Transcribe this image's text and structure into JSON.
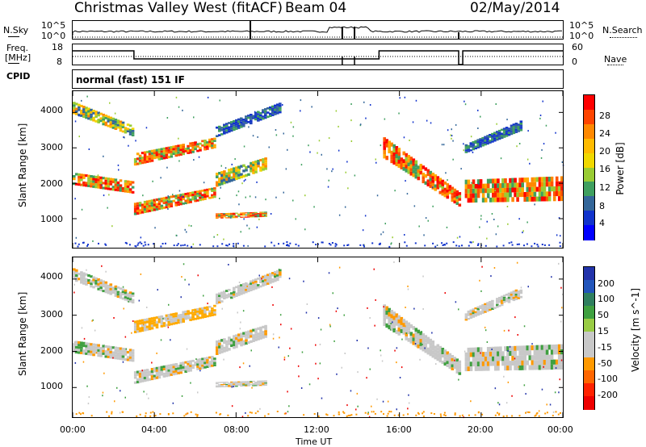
{
  "header": {
    "site": "Christmas Valley West (fitACF)",
    "beam": "Beam 04",
    "date": "02/May/2014"
  },
  "top_panels": {
    "nsky_label": "N.Sky",
    "nsearch_label": "N.Search",
    "freq_label_1": "Freq.",
    "freq_label_2": "[MHz]",
    "nave_label": "Nave",
    "cpid_label": "CPID",
    "nsky_ticks": [
      "10^5",
      "10^0"
    ],
    "nsearch_ticks": [
      "10^5",
      "10^0"
    ],
    "freq_ticks": [
      "18",
      "8"
    ],
    "nave_ticks": [
      "60",
      "0"
    ],
    "cpid_text": "normal (fast) 151 IF"
  },
  "power_colorbar": {
    "label": "Power [dB]",
    "ticks": [
      "28",
      "24",
      "20",
      "16",
      "12",
      "8",
      "4"
    ],
    "colors": [
      "#ff0000",
      "#ff4400",
      "#ff8800",
      "#ffbb00",
      "#f0d800",
      "#99cc33",
      "#3f9f5f",
      "#336699",
      "#1133cc",
      "#0000ff"
    ]
  },
  "velocity_colorbar": {
    "label": "Velocity [m s^-1]",
    "ticks": [
      "200",
      "100",
      "50",
      "15",
      "-15",
      "-50",
      "-100",
      "-200"
    ],
    "colors": [
      "#2233aa",
      "#2255bb",
      "#2f7f5f",
      "#3fa040",
      "#99cc44",
      "#c8c8c8",
      "#c8c8c8",
      "#ff9900",
      "#ff6600",
      "#ff2200",
      "#ee0000"
    ]
  },
  "chart_data": [
    {
      "type": "heatmap",
      "name": "power",
      "ylabel": "Slant Range [km]",
      "y_ticks": [
        1000,
        2000,
        3000,
        4000
      ],
      "ylim": [
        180,
        4600
      ],
      "xlim": [
        0,
        24
      ],
      "bands": [
        {
          "t0": 0.0,
          "t1": 3.0,
          "r0": 1950,
          "r1": 2300,
          "r0e": 1700,
          "r1e": 2050,
          "level": "high"
        },
        {
          "t0": 0.0,
          "t1": 3.0,
          "r0": 3950,
          "r1": 4300,
          "r0e": 3300,
          "r1e": 3600,
          "level": "mid"
        },
        {
          "t0": 3.0,
          "t1": 7.0,
          "r0": 1100,
          "r1": 1450,
          "r0e": 1600,
          "r1e": 1900,
          "level": "high"
        },
        {
          "t0": 3.0,
          "t1": 7.0,
          "r0": 2500,
          "r1": 2850,
          "r0e": 3000,
          "r1e": 3300,
          "level": "high"
        },
        {
          "t0": 7.0,
          "t1": 9.5,
          "r0": 1900,
          "r1": 2300,
          "r0e": 2400,
          "r1e": 2750,
          "level": "mid"
        },
        {
          "t0": 7.0,
          "t1": 10.2,
          "r0": 3300,
          "r1": 3600,
          "r0e": 4000,
          "r1e": 4300,
          "level": "low"
        },
        {
          "t0": 7.0,
          "t1": 9.5,
          "r0": 1000,
          "r1": 1150,
          "r0e": 1050,
          "r1e": 1200,
          "level": "high"
        },
        {
          "t0": 15.2,
          "t1": 19.0,
          "r0": 2700,
          "r1": 3300,
          "r0e": 1300,
          "r1e": 1700,
          "level": "high"
        },
        {
          "t0": 19.2,
          "t1": 24.0,
          "r0": 1450,
          "r1": 2100,
          "r0e": 1500,
          "r1e": 2200,
          "level": "high"
        },
        {
          "t0": 19.2,
          "t1": 22.0,
          "r0": 2850,
          "r1": 3100,
          "r0e": 3500,
          "r1e": 3800,
          "level": "low"
        }
      ]
    },
    {
      "type": "heatmap",
      "name": "velocity",
      "ylabel": "Slant Range [km]",
      "xlabel": "Time UT",
      "x_ticks": [
        "00:00",
        "04:00",
        "08:00",
        "12:00",
        "16:00",
        "20:00",
        "00:00"
      ],
      "y_ticks": [
        1000,
        2000,
        3000,
        4000
      ],
      "ylim": [
        180,
        4600
      ],
      "xlim": [
        0,
        24
      ]
    }
  ]
}
